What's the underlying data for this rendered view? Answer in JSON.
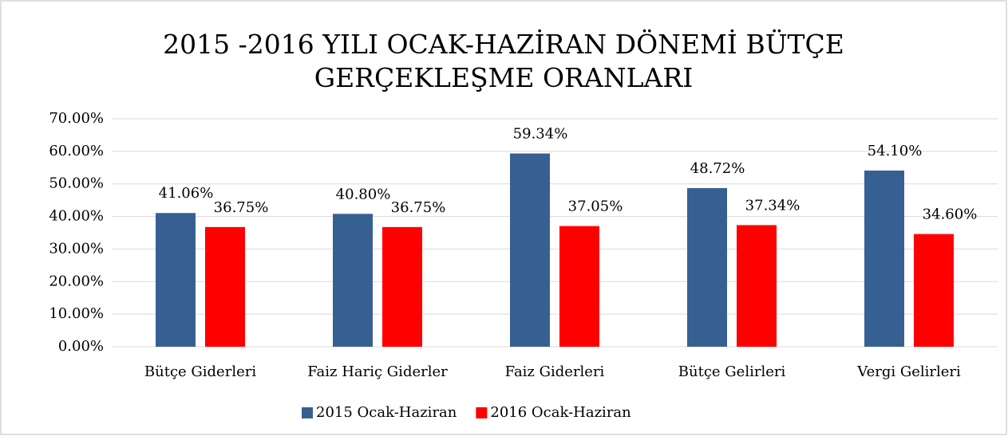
{
  "chart_data": {
    "type": "bar",
    "title": [
      "2015 -2016 YILI  OCAK-HAZİRAN DÖNEMİ BÜTÇE",
      "GERÇEKLEŞME ORANLARI"
    ],
    "categories": [
      "Bütçe Giderleri",
      "Faiz Hariç Giderler",
      "Faiz Giderleri",
      "Bütçe Gelirleri",
      "Vergi Gelirleri"
    ],
    "series": [
      {
        "name": "2015 Ocak-Haziran",
        "color": "#376092",
        "values": [
          41.06,
          40.8,
          59.34,
          48.72,
          54.1
        ],
        "value_labels": [
          "41.06%",
          "40.80%",
          "59.34%",
          "48.72%",
          "54.10%"
        ]
      },
      {
        "name": "2016 Ocak-Haziran",
        "color": "#ff0000",
        "values": [
          36.75,
          36.75,
          37.05,
          37.34,
          34.6
        ],
        "value_labels": [
          "36.75%",
          "36.75%",
          "37.05%",
          "37.34%",
          "34.60%"
        ]
      }
    ],
    "ylim": [
      0,
      70
    ],
    "yticks": [
      {
        "value": 0,
        "label": "0.00%"
      },
      {
        "value": 10,
        "label": "10.00%"
      },
      {
        "value": 20,
        "label": "20.00%"
      },
      {
        "value": 30,
        "label": "30.00%"
      },
      {
        "value": 40,
        "label": "40.00%"
      },
      {
        "value": 50,
        "label": "50.00%"
      },
      {
        "value": 60,
        "label": "60.00%"
      },
      {
        "value": 70,
        "label": "70.00%"
      }
    ],
    "grid": true,
    "legend": "bottom"
  }
}
